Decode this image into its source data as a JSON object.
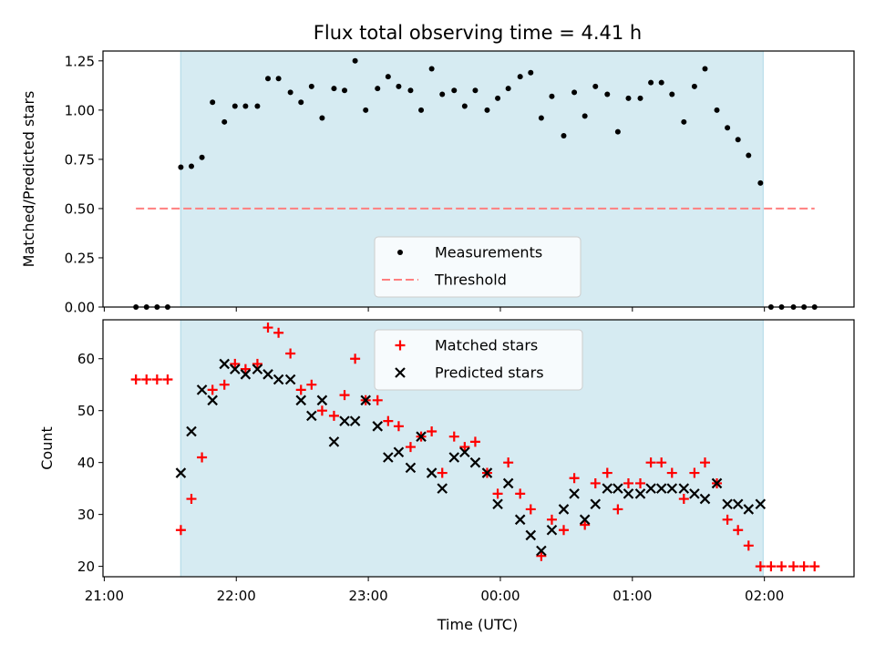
{
  "chart_data": {
    "type": "scatter",
    "title": "Flux total observing time = 4.41 h",
    "xlabel": "Time (UTC)",
    "x_ticks": [
      "21:00",
      "22:00",
      "23:00",
      "00:00",
      "01:00",
      "02:00"
    ],
    "x_tick_hours": [
      0,
      1,
      2,
      3,
      4,
      5
    ],
    "x_range_hours": [
      -0.0096,
      5.6788
    ],
    "x_units": "hours after 21:00 UTC",
    "observing_window_hours": [
      0.5788,
      4.9904
    ],
    "observing_window_color": "#add8e6",
    "panels": [
      {
        "ylabel": "Matched/Predicted stars",
        "ylim": [
          0,
          1.3
        ],
        "y_ticks": [
          0.0,
          0.25,
          0.5,
          0.75,
          1.0,
          1.25
        ],
        "y_tick_labels": [
          "0.00",
          "0.25",
          "0.50",
          "0.75",
          "1.00",
          "1.25"
        ],
        "legend_position": "bottom-center",
        "series": [
          {
            "name": "Measurements",
            "marker": "dot",
            "color": "#000000",
            "x": [
              0.24,
              0.32,
              0.4,
              0.48,
              0.58,
              0.66,
              0.74,
              0.82,
              0.91,
              0.99,
              1.07,
              1.16,
              1.24,
              1.32,
              1.41,
              1.49,
              1.57,
              1.65,
              1.74,
              1.82,
              1.9,
              1.98,
              2.07,
              2.15,
              2.23,
              2.32,
              2.4,
              2.48,
              2.56,
              2.65,
              2.73,
              2.81,
              2.9,
              2.98,
              3.06,
              3.15,
              3.23,
              3.31,
              3.39,
              3.48,
              3.56,
              3.64,
              3.72,
              3.81,
              3.89,
              3.97,
              4.06,
              4.14,
              4.22,
              4.3,
              4.39,
              4.47,
              4.55,
              4.64,
              4.72,
              4.8,
              4.88,
              4.97,
              5.05,
              5.13,
              5.22,
              5.3,
              5.38
            ],
            "y": [
              0,
              0,
              0,
              0,
              0.71,
              0.715,
              0.76,
              1.04,
              0.94,
              1.02,
              1.02,
              1.02,
              1.16,
              1.16,
              1.09,
              1.04,
              1.12,
              0.96,
              1.11,
              1.1,
              1.25,
              1.0,
              1.11,
              1.17,
              1.12,
              1.1,
              1.0,
              1.21,
              1.08,
              1.1,
              1.02,
              1.1,
              1.0,
              1.06,
              1.11,
              1.17,
              1.19,
              0.96,
              1.07,
              0.87,
              1.09,
              0.97,
              1.12,
              1.08,
              0.89,
              1.06,
              1.06,
              1.14,
              1.14,
              1.08,
              0.94,
              1.12,
              1.21,
              1.0,
              0.91,
              0.85,
              0.77,
              0.63,
              0,
              0,
              0,
              0,
              0
            ]
          },
          {
            "name": "Threshold",
            "marker": "dashed-line",
            "color": "#ff7f7f",
            "x": [
              0.24,
              5.38
            ],
            "y": [
              0.5,
              0.5
            ]
          }
        ]
      },
      {
        "ylabel": "Count",
        "ylim": [
          18,
          67.5
        ],
        "y_ticks": [
          20,
          30,
          40,
          50,
          60
        ],
        "y_tick_labels": [
          "20",
          "30",
          "40",
          "50",
          "60"
        ],
        "legend_position": "top-center",
        "series": [
          {
            "name": "Matched stars",
            "marker": "plus",
            "color": "#ff0000",
            "x": [
              0.24,
              0.32,
              0.4,
              0.48,
              0.58,
              0.66,
              0.74,
              0.82,
              0.91,
              0.99,
              1.07,
              1.16,
              1.24,
              1.32,
              1.41,
              1.49,
              1.57,
              1.65,
              1.74,
              1.82,
              1.9,
              1.98,
              2.07,
              2.15,
              2.23,
              2.32,
              2.4,
              2.48,
              2.56,
              2.65,
              2.73,
              2.81,
              2.9,
              2.98,
              3.06,
              3.15,
              3.23,
              3.31,
              3.39,
              3.48,
              3.56,
              3.64,
              3.72,
              3.81,
              3.89,
              3.97,
              4.06,
              4.14,
              4.22,
              4.3,
              4.39,
              4.47,
              4.55,
              4.64,
              4.72,
              4.8,
              4.88,
              4.97,
              5.05,
              5.13,
              5.22,
              5.3,
              5.38
            ],
            "y": [
              56,
              56,
              56,
              56,
              27,
              33,
              41,
              54,
              55,
              59,
              58,
              59,
              66,
              65,
              61,
              54,
              55,
              50,
              49,
              53,
              60,
              52,
              52,
              48,
              47,
              43,
              45,
              46,
              38,
              45,
              43,
              44,
              38,
              34,
              40,
              34,
              31,
              22,
              29,
              27,
              37,
              28,
              36,
              38,
              31,
              36,
              36,
              40,
              40,
              38,
              33,
              38,
              40,
              36,
              29,
              27,
              24,
              20,
              20,
              20,
              20,
              20,
              20
            ]
          },
          {
            "name": "Predicted stars",
            "marker": "x",
            "color": "#000000",
            "x": [
              0.58,
              0.66,
              0.74,
              0.82,
              0.91,
              0.99,
              1.07,
              1.16,
              1.24,
              1.32,
              1.41,
              1.49,
              1.57,
              1.65,
              1.74,
              1.82,
              1.9,
              1.98,
              2.07,
              2.15,
              2.23,
              2.32,
              2.4,
              2.48,
              2.56,
              2.65,
              2.73,
              2.81,
              2.9,
              2.98,
              3.06,
              3.15,
              3.23,
              3.31,
              3.39,
              3.48,
              3.56,
              3.64,
              3.72,
              3.81,
              3.89,
              3.97,
              4.06,
              4.14,
              4.22,
              4.3,
              4.39,
              4.47,
              4.55,
              4.64,
              4.72,
              4.8,
              4.88,
              4.97
            ],
            "y": [
              38,
              46,
              54,
              52,
              59,
              58,
              57,
              58,
              57,
              56,
              56,
              52,
              49,
              52,
              44,
              48,
              48,
              52,
              47,
              41,
              42,
              39,
              45,
              38,
              35,
              41,
              42,
              40,
              38,
              32,
              36,
              29,
              26,
              23,
              27,
              31,
              34,
              29,
              32,
              35,
              35,
              34,
              34,
              35,
              35,
              35,
              35,
              34,
              33,
              36,
              32,
              32,
              31,
              32
            ]
          }
        ]
      }
    ]
  }
}
